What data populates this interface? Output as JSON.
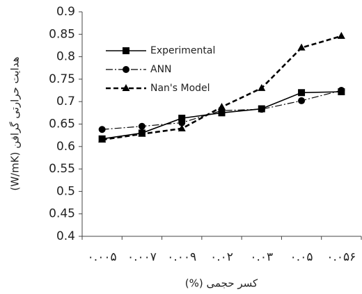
{
  "chart_data": {
    "type": "line",
    "x_label": "کسر حجمی (%)",
    "y_label": "هدایت حرارتی گرافن (W/mK)",
    "categories": [
      "۰.۰۰۵",
      "۰.۰۰۷",
      "۰.۰۰۹",
      "۰.۰۲",
      "۰.۰۳",
      "۰.۰۵",
      "۰.۰۵۶"
    ],
    "series": [
      {
        "name": "Experimental",
        "color": "#000000",
        "dash": "solid",
        "marker": "square",
        "values": [
          0.617,
          0.63,
          0.663,
          0.675,
          0.684,
          0.72,
          0.722
        ]
      },
      {
        "name": "ANN",
        "color": "#000000",
        "dash": "dashdot",
        "marker": "circle",
        "values": [
          0.638,
          0.645,
          0.653,
          0.68,
          0.683,
          0.702,
          0.725
        ]
      },
      {
        "name": "Nan's Model",
        "color": "#000000",
        "dash": "dash",
        "marker": "triangle",
        "values": [
          0.615,
          0.628,
          0.64,
          0.688,
          0.73,
          0.82,
          0.846
        ]
      }
    ],
    "ylim": [
      0.4,
      0.9
    ],
    "yticks": [
      0.4,
      0.45,
      0.5,
      0.55,
      0.6,
      0.65,
      0.7,
      0.75,
      0.8,
      0.85,
      0.9
    ],
    "grid": false,
    "legend": "upper left"
  }
}
